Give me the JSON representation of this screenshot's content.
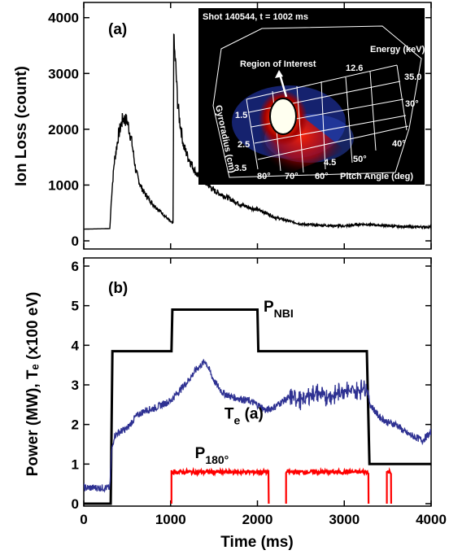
{
  "chart_data": [
    {
      "type": "line",
      "panel_label": "(a)",
      "ylabel": "Ion Loss (count)",
      "xlim": [
        0,
        4000
      ],
      "ylim": [
        0,
        4200
      ],
      "yticks": [
        0,
        1000,
        2000,
        3000,
        4000
      ],
      "series": [
        {
          "color": "#000000",
          "x": [
            0,
            300,
            320,
            350,
            400,
            450,
            500,
            550,
            600,
            650,
            700,
            800,
            900,
            1000,
            1030,
            1035,
            1040,
            1060,
            1080,
            1100,
            1150,
            1200,
            1300,
            1400,
            1500,
            1600,
            1700,
            1800,
            1900,
            2000,
            2100,
            2200,
            2300,
            2400,
            2500,
            2600,
            2700,
            2800,
            2900,
            3000,
            3200,
            3400,
            3600,
            3800,
            4000
          ],
          "y": [
            210,
            220,
            800,
            1400,
            1900,
            2200,
            2150,
            1800,
            1250,
            1000,
            850,
            650,
            500,
            340,
            310,
            4000,
            3500,
            3100,
            2500,
            2200,
            1700,
            1500,
            1200,
            1050,
            900,
            820,
            740,
            650,
            600,
            560,
            500,
            420,
            380,
            340,
            300,
            290,
            280,
            275,
            270,
            265,
            300,
            280,
            260,
            250,
            250
          ]
        }
      ],
      "inset": {
        "title": "Shot 140544, t = 1002 ms",
        "region_label": "Region of Interest",
        "energy_label": "Energy (keV)",
        "energy_ticks": [
          "12.6",
          "35.0"
        ],
        "gyroradius_label": "Gyroradius (cm)",
        "gyroradius_ticks": [
          "1.5",
          "2.5",
          "3.5",
          "4.5"
        ],
        "pitch_label": "Pitch Angle (deg)",
        "pitch_ticks": [
          "80°",
          "70°",
          "60°",
          "50°",
          "40°",
          "30°"
        ]
      }
    },
    {
      "type": "line",
      "panel_label": "(b)",
      "xlabel": "Time (ms)",
      "ylabel": "Power (MW), Tₑ (x100 eV)",
      "xlim": [
        0,
        4000
      ],
      "ylim": [
        0,
        6
      ],
      "xticks": [
        0,
        1000,
        2000,
        3000,
        4000
      ],
      "yticks": [
        0,
        1,
        2,
        3,
        4,
        5,
        6
      ],
      "series": [
        {
          "name": "P_NBI",
          "color": "#000000",
          "x": [
            0,
            310,
            330,
            1000,
            1010,
            1020,
            2000,
            2010,
            2020,
            3240,
            3260,
            3290,
            4000
          ],
          "y": [
            0,
            0,
            3.85,
            3.85,
            3.85,
            4.9,
            4.9,
            3.85,
            3.85,
            3.85,
            3.85,
            1.0,
            1.0
          ]
        },
        {
          "name": "T_e (a)",
          "color": "#2e3192",
          "x": [
            0,
            300,
            320,
            350,
            400,
            500,
            600,
            700,
            800,
            900,
            1000,
            1100,
            1200,
            1300,
            1400,
            1500,
            1600,
            1700,
            1800,
            1900,
            2000,
            2100,
            2200,
            2300,
            2400,
            2500,
            2600,
            2700,
            2800,
            2900,
            3000,
            3100,
            3200,
            3250,
            3300,
            3400,
            3500,
            3600,
            3700,
            3800,
            3900,
            4000
          ],
          "y": [
            0.4,
            0.4,
            1.3,
            1.7,
            1.8,
            1.9,
            2.2,
            2.35,
            2.4,
            2.5,
            2.6,
            2.85,
            3.1,
            3.4,
            3.6,
            3.1,
            2.8,
            2.7,
            2.65,
            2.6,
            2.5,
            2.35,
            2.45,
            2.6,
            2.7,
            2.6,
            2.75,
            2.8,
            2.7,
            2.75,
            2.9,
            2.8,
            2.9,
            3.0,
            2.5,
            2.2,
            2.05,
            2.0,
            1.8,
            1.7,
            1.6,
            1.8
          ]
        },
        {
          "name": "P_180°",
          "color": "#ff0000",
          "segments": [
            {
              "x": [
                1010,
                2130
              ],
              "y": 0.8
            },
            {
              "x": [
                2330,
                3280
              ],
              "y": 0.8
            },
            {
              "x": [
                3490,
                3540
              ],
              "y": 0.8
            }
          ]
        }
      ],
      "annotations": [
        {
          "base": "P",
          "sub": "NBI",
          "x": 2070,
          "y": 4.85
        },
        {
          "base": "T",
          "sub": "e",
          "suffix": " (a)",
          "x": 1620,
          "y": 2.15
        },
        {
          "base": "P",
          "sub": "180°",
          "x": 1280,
          "y": 1.15
        }
      ]
    }
  ]
}
